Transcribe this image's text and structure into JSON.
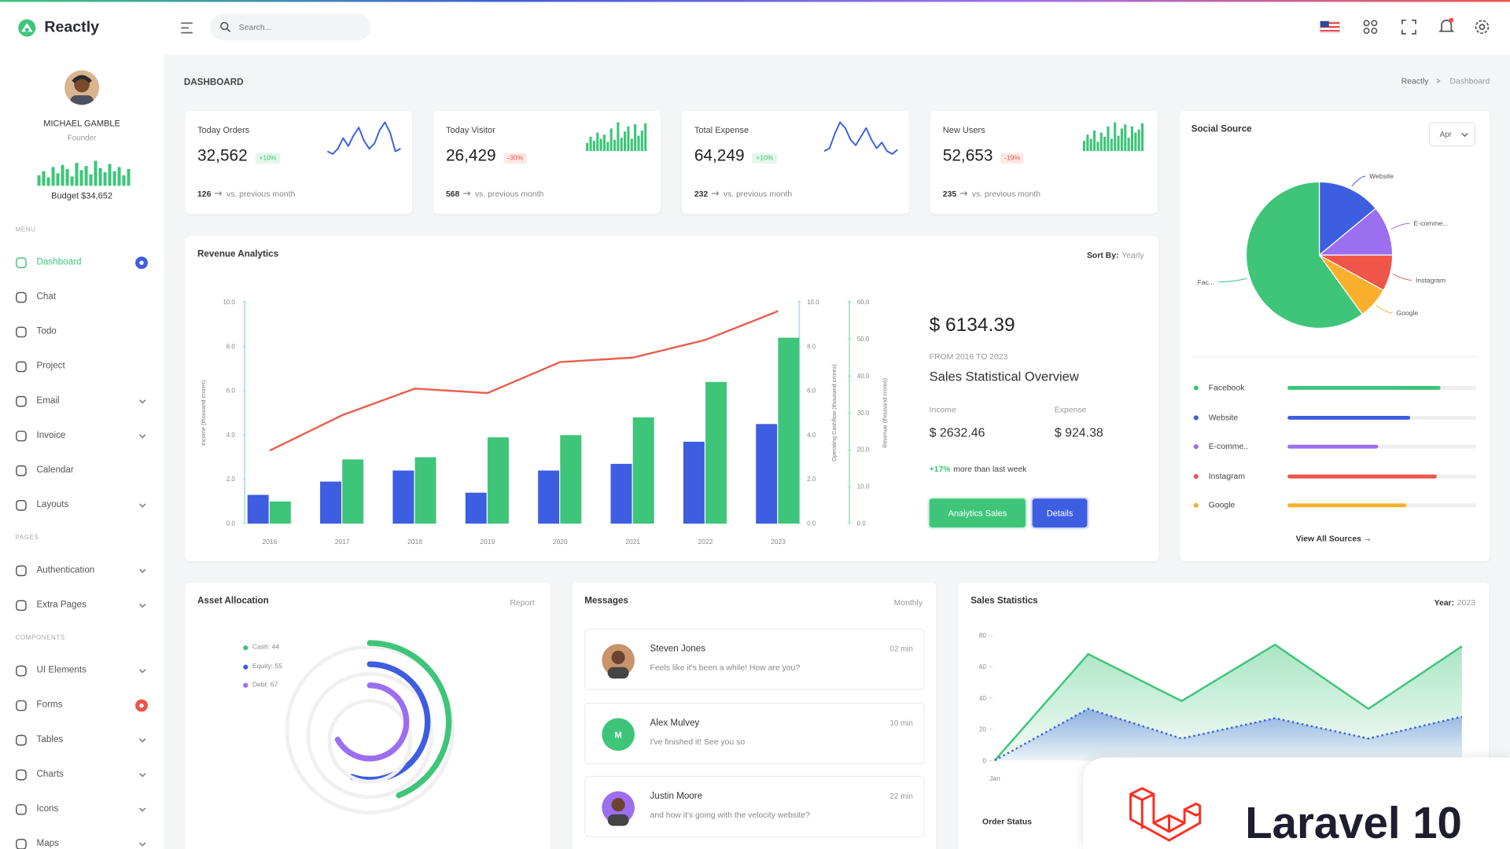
{
  "header": {
    "brand": "Reactly",
    "search_placeholder": "Search..."
  },
  "sidebar": {
    "profile": {
      "name": "MICHAEL GAMBLE",
      "role": "Founder",
      "budget": "Budget $34,652",
      "color": "#3ec57a",
      "bars": [
        10,
        14,
        8,
        18,
        12,
        20,
        16,
        9,
        22,
        15,
        19,
        11,
        24,
        17,
        13,
        21,
        14,
        18,
        10,
        16
      ]
    },
    "sections": [
      {
        "title": "MENU",
        "items": [
          {
            "label": "Dashboard",
            "active": true,
            "badge_color": "#3d5ee1"
          },
          {
            "label": "Chat"
          },
          {
            "label": "Todo"
          },
          {
            "label": "Project"
          },
          {
            "label": "Email",
            "arrow": true
          },
          {
            "label": "Invoice",
            "arrow": true
          },
          {
            "label": "Calendar"
          },
          {
            "label": "Layouts",
            "arrow": true
          }
        ]
      },
      {
        "title": "PAGES",
        "items": [
          {
            "label": "Authentication",
            "arrow": true
          },
          {
            "label": "Extra Pages",
            "arrow": true
          }
        ]
      },
      {
        "title": "COMPONENTS",
        "items": [
          {
            "label": "UI Elements",
            "arrow": true
          },
          {
            "label": "Forms",
            "badge_color": "#ef5548"
          },
          {
            "label": "Tables",
            "arrow": true
          },
          {
            "label": "Charts",
            "arrow": true
          },
          {
            "label": "Icons",
            "arrow": true
          },
          {
            "label": "Maps",
            "arrow": true
          }
        ]
      }
    ]
  },
  "page": {
    "title": "DASHBOARD",
    "breadcrumb": [
      "Reactly",
      "Dashboard"
    ]
  },
  "stats": [
    {
      "title": "Today Orders",
      "value": "32,562",
      "change": "+10%",
      "change_color": "#3ec57a",
      "count": "126",
      "note": "vs. previous month",
      "spark_type": "line",
      "spark_color": "#3d5ee1",
      "spark": [
        12,
        10,
        14,
        22,
        16,
        24,
        30,
        20,
        14,
        18,
        28,
        34,
        26,
        12,
        14
      ]
    },
    {
      "title": "Today Visitor",
      "value": "26,429",
      "change": "-30%",
      "change_color": "#ef5548",
      "count": "568",
      "note": "vs. previous month",
      "spark_type": "bar",
      "spark_color": "#3ec57a",
      "spark": [
        8,
        14,
        10,
        18,
        12,
        16,
        9,
        22,
        11,
        28,
        13,
        19,
        24,
        12,
        26,
        15,
        20,
        27
      ]
    },
    {
      "title": "Total Expense",
      "value": "64,249",
      "change": "+10%",
      "change_color": "#3ec57a",
      "count": "232",
      "note": "vs. previous month",
      "spark_type": "line",
      "spark_color": "#3d5ee1",
      "spark": [
        14,
        16,
        26,
        34,
        30,
        22,
        18,
        24,
        30,
        22,
        16,
        20,
        14,
        12,
        15
      ]
    },
    {
      "title": "New Users",
      "value": "52,653",
      "change": "-19%",
      "change_color": "#ef5548",
      "count": "235",
      "note": "vs. previous month",
      "spark_type": "bar",
      "spark_color": "#3ec57a",
      "spark": [
        10,
        16,
        12,
        20,
        9,
        18,
        14,
        24,
        12,
        28,
        15,
        22,
        26,
        13,
        24,
        18,
        21,
        27
      ]
    }
  ],
  "revenue": {
    "title": "Revenue Analytics",
    "sort_label": "Sort By:",
    "sort_value": "Yearly",
    "chart": {
      "type": "bar",
      "categories": [
        "2016",
        "2017",
        "2018",
        "2019",
        "2020",
        "2021",
        "2022",
        "2023"
      ],
      "series": [
        {
          "type": "bar",
          "color": "#3d5ee1",
          "values": [
            1.3,
            1.9,
            2.4,
            1.4,
            2.4,
            2.7,
            3.7,
            4.5
          ]
        },
        {
          "type": "bar",
          "color": "#3ec57a",
          "values": [
            1.0,
            2.9,
            3.0,
            3.9,
            4.0,
            4.8,
            6.4,
            8.4
          ]
        },
        {
          "type": "line",
          "color": "#e95f4c",
          "values": [
            3.3,
            4.9,
            6.1,
            5.9,
            7.3,
            7.5,
            8.3,
            9.6
          ]
        }
      ],
      "ylabel": "Income (thousand crores)",
      "ylim": [
        0,
        10
      ],
      "yticks": [
        {
          "value": 0,
          "label": "0.0"
        },
        {
          "value": 2,
          "label": "2.0"
        },
        {
          "value": 4,
          "label": "4.0"
        },
        {
          "value": 6,
          "label": "6.0"
        },
        {
          "value": 8,
          "label": "8.0"
        },
        {
          "value": 10,
          "label": "10.0"
        }
      ],
      "y2label": "Operating Cashflow (thousand crores)",
      "y2lim": [
        0,
        10
      ],
      "y2ticks": [
        {
          "value": 0,
          "label": "0.0"
        },
        {
          "value": 2,
          "label": "2.0"
        },
        {
          "value": 4,
          "label": "4.0"
        },
        {
          "value": 6,
          "label": "6.0"
        },
        {
          "value": 8,
          "label": "8.0"
        },
        {
          "value": 10,
          "label": "10.0"
        }
      ],
      "y3label": "Revenue (thousand crores)",
      "y3lim": [
        0,
        60
      ],
      "y3ticks": [
        {
          "value": 0,
          "label": "0.0"
        },
        {
          "value": 10,
          "label": "10.0"
        },
        {
          "value": 20,
          "label": "20.0"
        },
        {
          "value": 30,
          "label": "30.0"
        },
        {
          "value": 40,
          "label": "40.0"
        },
        {
          "value": 50,
          "label": "50.0"
        },
        {
          "value": 60,
          "label": "60.0"
        }
      ]
    },
    "total": "$ 6134.39",
    "period": "FROM 2016 TO 2023",
    "overview": "Sales Statistical Overview",
    "income_label": "Income",
    "income": "$ 2632.46",
    "expense_label": "Expense",
    "expense": "$ 924.38",
    "growth": "+17%",
    "growth_text": "more than last week",
    "buttons": [
      "Analytics Sales",
      "Details"
    ]
  },
  "social": {
    "title": "Social Source",
    "filter": "Apr",
    "chart": {
      "type": "pie",
      "slices": [
        {
          "label": "Website",
          "value": 14,
          "color": "#3d5ee1"
        },
        {
          "label": "E-comme...",
          "value": 11,
          "color": "#9c6ef0"
        },
        {
          "label": "Instagram",
          "value": 8,
          "color": "#ef5548"
        },
        {
          "label": "Google",
          "value": 7,
          "color": "#fbb02d"
        },
        {
          "label": "Fac...",
          "value": 60,
          "color": "#3ec57a"
        }
      ]
    },
    "sources": [
      {
        "name": "Facebook",
        "value": 81,
        "color": "#3ec57a"
      },
      {
        "name": "Website",
        "value": 65,
        "color": "#3d5ee1"
      },
      {
        "name": "E-comme..",
        "value": 48,
        "color": "#9c6ef0"
      },
      {
        "name": "Instagram",
        "value": 79,
        "color": "#ef5548"
      },
      {
        "name": "Google",
        "value": 63,
        "color": "#fbb02d"
      }
    ],
    "link": "View All Sources →"
  },
  "asset": {
    "title": "Asset Allocation",
    "filter": "Report",
    "items": [
      {
        "label": "Cash: 44",
        "value": 44,
        "color": "#3ec57a"
      },
      {
        "label": "Equity: 55",
        "value": 55,
        "color": "#3d5ee1"
      },
      {
        "label": "Debt: 67",
        "value": 67,
        "color": "#9c6ef0"
      }
    ]
  },
  "messages": {
    "title": "Messages",
    "filter": "Monthly",
    "items": [
      {
        "name": "Steven Jones",
        "time": "02 min",
        "text": "Feels like it's been a while! How are you?"
      },
      {
        "name": "Alex Mulvey",
        "time": "10 min",
        "text": "I've finished it! See you so",
        "initial": "M"
      },
      {
        "name": "Justin Moore",
        "time": "22 min",
        "text": "and how it's going with the velocity website?"
      }
    ]
  },
  "sales": {
    "title": "Sales Statistics",
    "filter_label": "Year:",
    "filter_value": "2023",
    "subtitle": "Order Status",
    "chart": {
      "type": "area",
      "categories": [
        "Jan",
        null,
        null,
        null,
        null,
        null
      ],
      "series": [
        {
          "color": "#3ec57a",
          "values": [
            0,
            68,
            38,
            74,
            33,
            73
          ]
        },
        {
          "color": "#3d5ee1",
          "dashed": true,
          "values": [
            0,
            33,
            14,
            27,
            14,
            28
          ]
        }
      ],
      "ylim": [
        0,
        80
      ],
      "yticks": [
        0,
        20,
        40,
        60,
        80
      ]
    }
  },
  "promo": {
    "text": "Laravel 10"
  }
}
